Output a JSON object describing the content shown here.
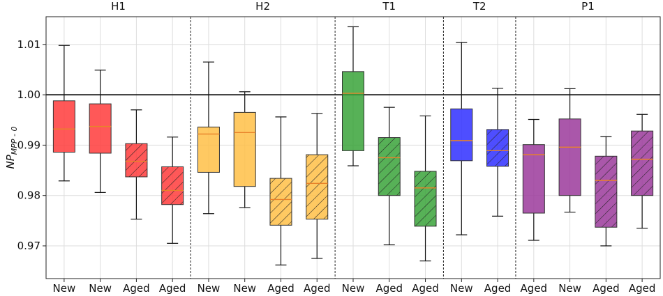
{
  "chart_data": {
    "type": "boxplot",
    "ylabel_main": "NP",
    "ylabel_sub": "MPP - 0",
    "ylim": [
      0.9635,
      1.0155
    ],
    "yticks": [
      0.97,
      0.98,
      0.99,
      1.0,
      1.01
    ],
    "ytick_labels": [
      "0.97",
      "0.98",
      "0.99",
      "1.00",
      "1.01"
    ],
    "reference_line": 1.0,
    "grid": true,
    "groups": [
      {
        "label": "H1",
        "start": 0,
        "end": 3
      },
      {
        "label": "H2",
        "start": 4,
        "end": 7
      },
      {
        "label": "T1",
        "start": 8,
        "end": 10
      },
      {
        "label": "T2",
        "start": 11,
        "end": 12
      },
      {
        "label": "P1",
        "start": 13,
        "end": 16
      }
    ],
    "boxes": [
      {
        "label": "New",
        "color": "#ff3b3b",
        "hatch": false,
        "whisker_low": 0.9829,
        "q1": 0.9886,
        "median": 0.9932,
        "q3": 0.9988,
        "whisker_high": 1.0098
      },
      {
        "label": "New",
        "color": "#ff3b3b",
        "hatch": false,
        "whisker_low": 0.9806,
        "q1": 0.9884,
        "median": 0.9937,
        "q3": 0.9982,
        "whisker_high": 1.0049
      },
      {
        "label": "Aged",
        "color": "#ff3b3b",
        "hatch": true,
        "whisker_low": 0.9753,
        "q1": 0.9837,
        "median": 0.9868,
        "q3": 0.9903,
        "whisker_high": 0.997
      },
      {
        "label": "Aged",
        "color": "#ff3b3b",
        "hatch": true,
        "whisker_low": 0.9705,
        "q1": 0.9782,
        "median": 0.981,
        "q3": 0.9857,
        "whisker_high": 0.9916
      },
      {
        "label": "New",
        "color": "#ffbf47",
        "hatch": false,
        "whisker_low": 0.9764,
        "q1": 0.9846,
        "median": 0.9922,
        "q3": 0.9936,
        "whisker_high": 1.0065
      },
      {
        "label": "New",
        "color": "#ffbf47",
        "hatch": false,
        "whisker_low": 0.9776,
        "q1": 0.9818,
        "median": 0.9925,
        "q3": 0.9965,
        "whisker_high": 1.0006
      },
      {
        "label": "Aged",
        "color": "#ffbf47",
        "hatch": true,
        "whisker_low": 0.9662,
        "q1": 0.9741,
        "median": 0.9792,
        "q3": 0.9834,
        "whisker_high": 0.9956
      },
      {
        "label": "Aged",
        "color": "#ffbf47",
        "hatch": true,
        "whisker_low": 0.9675,
        "q1": 0.9753,
        "median": 0.9824,
        "q3": 0.9881,
        "whisker_high": 0.9963
      },
      {
        "label": "New",
        "color": "#3aa33a",
        "hatch": false,
        "whisker_low": 0.9859,
        "q1": 0.9889,
        "median": 1.0003,
        "q3": 1.0046,
        "whisker_high": 1.0135
      },
      {
        "label": "Aged",
        "color": "#3aa33a",
        "hatch": true,
        "whisker_low": 0.9702,
        "q1": 0.98,
        "median": 0.9875,
        "q3": 0.9915,
        "whisker_high": 0.9975
      },
      {
        "label": "Aged",
        "color": "#3aa33a",
        "hatch": true,
        "whisker_low": 0.967,
        "q1": 0.9739,
        "median": 0.9815,
        "q3": 0.9848,
        "whisker_high": 0.9958
      },
      {
        "label": "New",
        "color": "#2f2fff",
        "hatch": false,
        "whisker_low": 0.9722,
        "q1": 0.9869,
        "median": 0.9909,
        "q3": 0.9972,
        "whisker_high": 1.0104
      },
      {
        "label": "Aged",
        "color": "#2f2fff",
        "hatch": true,
        "whisker_low": 0.9759,
        "q1": 0.9858,
        "median": 0.9889,
        "q3": 0.9931,
        "whisker_high": 1.0013
      },
      {
        "label": "Aged",
        "color": "#9b3a9b",
        "hatch": false,
        "whisker_low": 0.9711,
        "q1": 0.9765,
        "median": 0.9881,
        "q3": 0.9901,
        "whisker_high": 0.9951
      },
      {
        "label": "New",
        "color": "#9b3a9b",
        "hatch": false,
        "whisker_low": 0.9767,
        "q1": 0.98,
        "median": 0.9896,
        "q3": 0.9952,
        "whisker_high": 1.0012
      },
      {
        "label": "Aged",
        "color": "#9b3a9b",
        "hatch": true,
        "whisker_low": 0.97,
        "q1": 0.9737,
        "median": 0.983,
        "q3": 0.9878,
        "whisker_high": 0.9917
      },
      {
        "label": "Aged",
        "color": "#9b3a9b",
        "hatch": true,
        "whisker_low": 0.9735,
        "q1": 0.98,
        "median": 0.9872,
        "q3": 0.9928,
        "whisker_high": 0.9961
      }
    ],
    "median_color": "#e8822a"
  }
}
